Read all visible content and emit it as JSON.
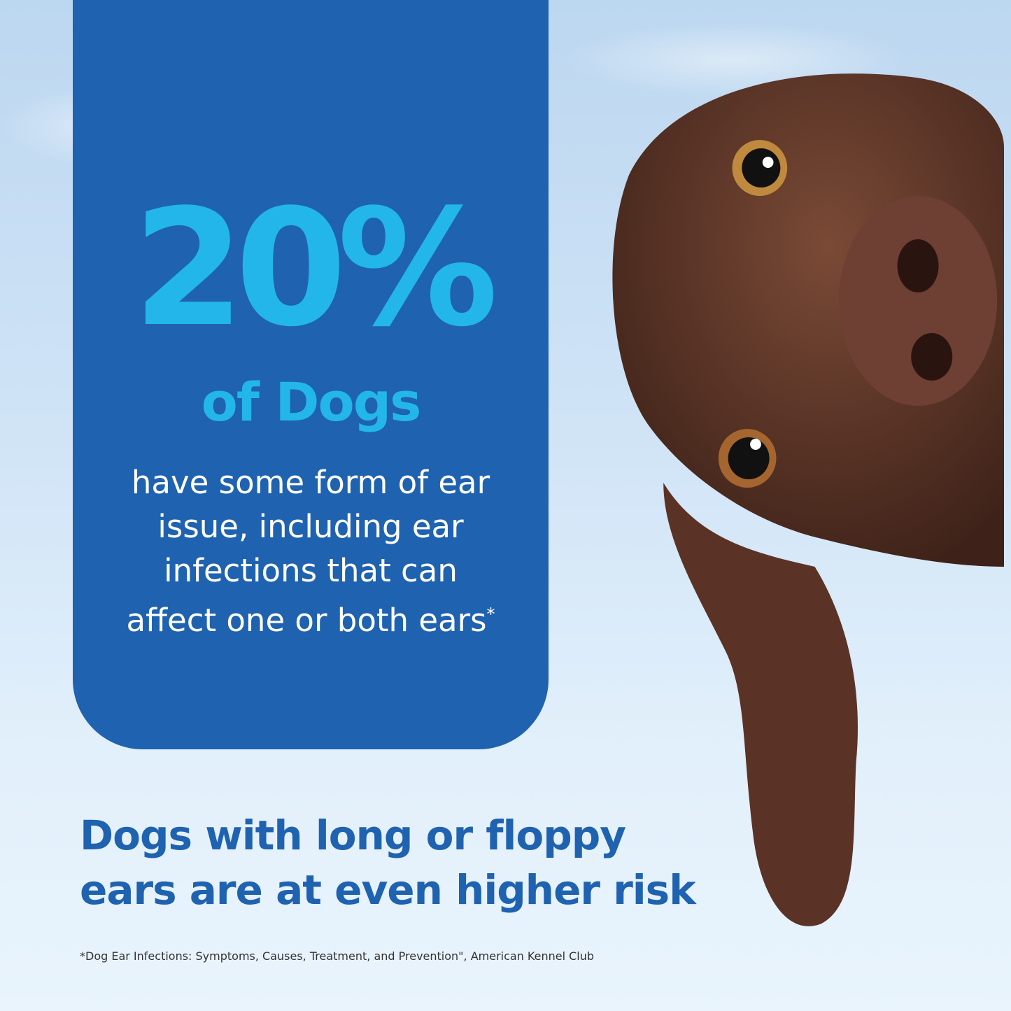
{
  "panel": {
    "stat": "20%",
    "stat_subject": "of Dogs",
    "description": "have some form of ear issue, including ear infections that can affect one or both ears",
    "footnote_marker": "*"
  },
  "headline": {
    "line1": "Dogs with long or floppy",
    "line2": "ears are at even higher risk"
  },
  "footnote": "*Dog Ear Infections: Symptoms, Causes, Treatment, and Prevention\",  American Kennel Club",
  "colors": {
    "panel": "#1f62b0",
    "accent": "#23b6ea",
    "headline": "#1f62b0"
  },
  "image": "brown-dog-peeking-photo"
}
